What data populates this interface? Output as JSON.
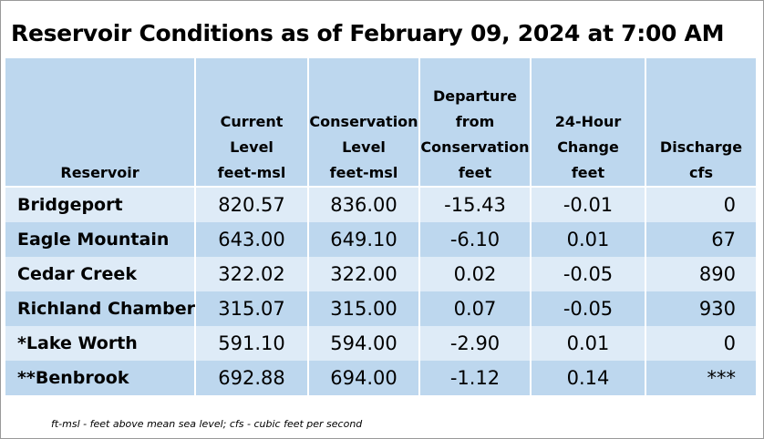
{
  "title": "Reservoir Conditions as of February 09, 2024 at 7:00 AM",
  "headers": {
    "reservoir": [
      "Reservoir"
    ],
    "current": [
      "Current",
      "Level",
      "feet-msl"
    ],
    "conservation": [
      "Conservation",
      "Level",
      "feet-msl"
    ],
    "departure": [
      "Departure",
      "from",
      "Conservation",
      "feet"
    ],
    "change": [
      "24-Hour",
      "Change",
      "feet"
    ],
    "discharge": [
      "Discharge",
      "cfs"
    ]
  },
  "rows": [
    {
      "name": "Bridgeport",
      "current": "820.57",
      "conservation": "836.00",
      "departure": "-15.43",
      "change": "-0.01",
      "discharge": "0"
    },
    {
      "name": "Eagle Mountain",
      "current": "643.00",
      "conservation": "649.10",
      "departure": "-6.10",
      "change": "0.01",
      "discharge": "67"
    },
    {
      "name": "Cedar Creek",
      "current": "322.02",
      "conservation": "322.00",
      "departure": "0.02",
      "change": "-0.05",
      "discharge": "890"
    },
    {
      "name": "Richland Chambers",
      "current": "315.07",
      "conservation": "315.00",
      "departure": "0.07",
      "change": "-0.05",
      "discharge": "930"
    },
    {
      "name": "*Lake Worth",
      "current": "591.10",
      "conservation": "594.00",
      "departure": "-2.90",
      "change": "0.01",
      "discharge": "0"
    },
    {
      "name": "**Benbrook",
      "current": "692.88",
      "conservation": "694.00",
      "departure": "-1.12",
      "change": "0.14",
      "discharge": "***"
    }
  ],
  "footnote": "ft-msl - feet above mean sea level; cfs - cubic feet per second"
}
